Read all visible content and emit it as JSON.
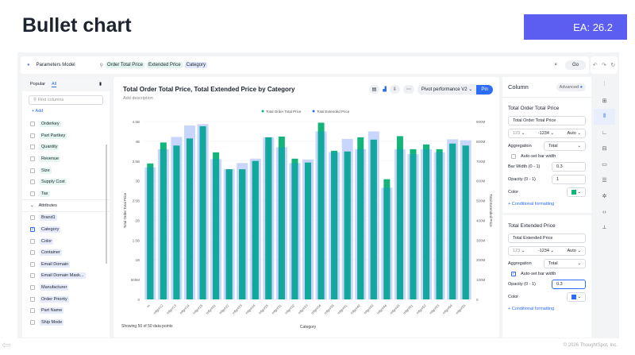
{
  "slide": {
    "title": "Bullet chart",
    "badge": "EA: 26.2",
    "footer": "© 2026 ThoughtSpot, Inc."
  },
  "topbar": {
    "model": "Parameters Model",
    "tokens": [
      "Order Total Price",
      "Extended Price",
      "Category"
    ],
    "go": "Go"
  },
  "left": {
    "tabs": [
      "Popular",
      "All"
    ],
    "search_placeholder": "Find columns",
    "add": "+ Add",
    "measures": [
      "Orderkey",
      "Part Partkey",
      "Quantity",
      "Revenue",
      "Size",
      "Supply Cost",
      "Tax"
    ],
    "attributes_header": "Attributes",
    "attributes": [
      {
        "label": "Brand1",
        "checked": false
      },
      {
        "label": "Category",
        "checked": true
      },
      {
        "label": "Color",
        "checked": false
      },
      {
        "label": "Container",
        "checked": false
      },
      {
        "label": "Email Domain",
        "checked": false
      },
      {
        "label": "Email Domain Mask...",
        "checked": false
      },
      {
        "label": "Manufacturer",
        "checked": false
      },
      {
        "label": "Order Priority",
        "checked": false
      },
      {
        "label": "Part Name",
        "checked": false
      },
      {
        "label": "Ship Mode",
        "checked": false
      }
    ]
  },
  "card": {
    "title": "Total Order Total Price, Total Extended Price by Category",
    "description": "Add description",
    "pivot": "Pivot performance V2",
    "pin": "Pin",
    "footer": "Showing 50 of 50 data points"
  },
  "chart_data": {
    "type": "bar",
    "xlabel": "Category",
    "ylabel": "Total Order Total Price",
    "y2label": "Total Extended Price",
    "categories": [
      "m",
      "mfgr#12",
      "mfgr#13",
      "mfgr#14",
      "mfgr#15",
      "mfgr#21",
      "mfgr#22",
      "mfgr#23",
      "mfgr#24",
      "mfgr#25",
      "mfgr#31",
      "mfgr#32",
      "mfgr#33",
      "mfgr#34",
      "mfgr#35",
      "mfgr#41",
      "mfgr#42",
      "mfgr#43",
      "mfgr#44",
      "mfgr#45",
      "mfgr#51",
      "mfgr#52",
      "mfgr#53",
      "mfgr#54",
      "mfgr#55"
    ],
    "yticks": [
      "0",
      "500M",
      "1B",
      "1.5B",
      "2B",
      "2.5B",
      "3B",
      "3.5B",
      "4B",
      "4.5B"
    ],
    "y2ticks": [
      "0",
      "100M",
      "200M",
      "300M",
      "400M",
      "500M",
      "600M",
      "700M",
      "800M",
      "900M"
    ],
    "ylim": [
      0,
      4500000000
    ],
    "y2lim": [
      0,
      900000000
    ],
    "legend_position": "top",
    "grid": true,
    "series": [
      {
        "name": "Total Order Total Price",
        "color": "#13a89e",
        "axis": "left",
        "values": [
          3440000000.0,
          3970000000.0,
          3890000000.0,
          4070000000.0,
          4380000000.0,
          3720000000.0,
          3290000000.0,
          3290000000.0,
          3500000000.0,
          4100000000.0,
          4120000000.0,
          3560000000.0,
          3460000000.0,
          4470000000.0,
          3760000000.0,
          3740000000.0,
          4100000000.0,
          4040000000.0,
          3040000000.0,
          4130000000.0,
          3800000000.0,
          3920000000.0,
          3800000000.0,
          3940000000.0,
          3890000000.0
        ]
      },
      {
        "name": "Total Extended Price",
        "color": "#c9d6fb",
        "axis": "right",
        "values": [
          668000000.0,
          760000000.0,
          822000000.0,
          880000000.0,
          887000000.0,
          710000000.0,
          660000000.0,
          690000000.0,
          712000000.0,
          820000000.0,
          770000000.0,
          690000000.0,
          708000000.0,
          850000000.0,
          745000000.0,
          812000000.0,
          760000000.0,
          850000000.0,
          565000000.0,
          760000000.0,
          735000000.0,
          760000000.0,
          745000000.0,
          810000000.0,
          805000000.0
        ]
      }
    ]
  },
  "right": {
    "header": "Column",
    "advanced": "Advanced",
    "sections": [
      {
        "title": "Total Order Total Price",
        "name": "Total Order Total Price",
        "fmt": [
          "123",
          "-1234",
          "Auto"
        ],
        "agg_label": "Aggregation",
        "agg": "Total",
        "auto_label": "Auto-set bar width",
        "auto": false,
        "bw_label": "Bar Width (0 - 1)",
        "bw": "0.3",
        "op_label": "Opacity (0 - 1)",
        "op": "1",
        "color_label": "Color",
        "color": "#13b57a",
        "cf": "+ Conditional formatting"
      },
      {
        "title": "Total Extended Price",
        "name": "Total Extended Price",
        "fmt": [
          "123",
          "-1234",
          "Auto"
        ],
        "agg_label": "Aggregation",
        "agg": "Total",
        "auto_label": "Auto-set bar width",
        "auto": true,
        "op_label": "Opacity (0 - 1)",
        "op": "0.3",
        "color_label": "Color",
        "color": "#2d6df6",
        "cf": "+ Conditional formatting"
      }
    ]
  },
  "rail_icons": [
    "chart-type-icon",
    "table-settings-icon",
    "columns-icon",
    "axis-icon",
    "data-labels-icon",
    "display-icon",
    "list-icon",
    "sparkle-icon",
    "code-icon",
    "pin-icon"
  ]
}
